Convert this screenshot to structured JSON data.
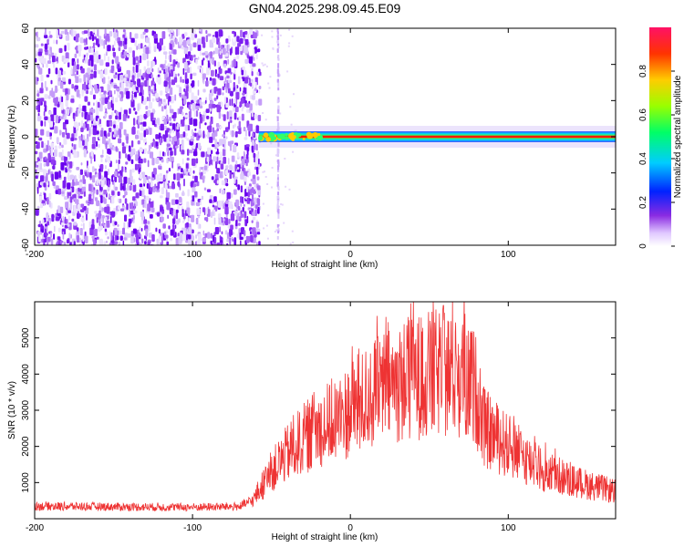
{
  "title": "GN04.2025.298.09.45.E09",
  "chart_data": [
    {
      "type": "heatmap",
      "name": "spectrogram",
      "xlabel": "Height of straight line (km)",
      "ylabel": "Frequency (Hz)",
      "xlim": [
        -200,
        168
      ],
      "ylim": [
        -60,
        60
      ],
      "xticks": [
        -200,
        -100,
        0,
        100
      ],
      "yticks": [
        -60,
        -40,
        -20,
        0,
        20,
        40,
        60
      ],
      "noise_region_x": [
        -200,
        -58
      ],
      "stripe_x": -46,
      "signal_onset_x": -58,
      "signal_frequency": 0,
      "colorbar": {
        "label": "Normalized spectral amplitude",
        "range": [
          0,
          1
        ],
        "ticks": [
          0.0,
          0.2,
          0.4,
          0.6,
          0.8
        ]
      }
    },
    {
      "type": "line",
      "name": "snr",
      "xlabel": "Height of straight line (km)",
      "ylabel": "SNR (10 * v/v)",
      "xlim": [
        -200,
        168
      ],
      "ylim": [
        0,
        6000
      ],
      "xticks": [
        -200,
        -100,
        0,
        100
      ],
      "yticks": [
        1000,
        2000,
        3000,
        4000,
        5000
      ],
      "color": "#ee3333",
      "envelope": [
        {
          "x": -200,
          "y": 350
        },
        {
          "x": -150,
          "y": 330
        },
        {
          "x": -100,
          "y": 320
        },
        {
          "x": -70,
          "y": 340
        },
        {
          "x": -62,
          "y": 500
        },
        {
          "x": -50,
          "y": 1300
        },
        {
          "x": -40,
          "y": 1800
        },
        {
          "x": -30,
          "y": 2200
        },
        {
          "x": -20,
          "y": 2500
        },
        {
          "x": -10,
          "y": 2700
        },
        {
          "x": 0,
          "y": 3000
        },
        {
          "x": 10,
          "y": 3300
        },
        {
          "x": 20,
          "y": 3600
        },
        {
          "x": 40,
          "y": 3900
        },
        {
          "x": 60,
          "y": 4050
        },
        {
          "x": 75,
          "y": 3900
        },
        {
          "x": 80,
          "y": 3500
        },
        {
          "x": 85,
          "y": 2500
        },
        {
          "x": 100,
          "y": 2000
        },
        {
          "x": 120,
          "y": 1400
        },
        {
          "x": 140,
          "y": 1050
        },
        {
          "x": 168,
          "y": 750
        }
      ],
      "peak": {
        "x": 59,
        "y": 5900
      }
    }
  ]
}
